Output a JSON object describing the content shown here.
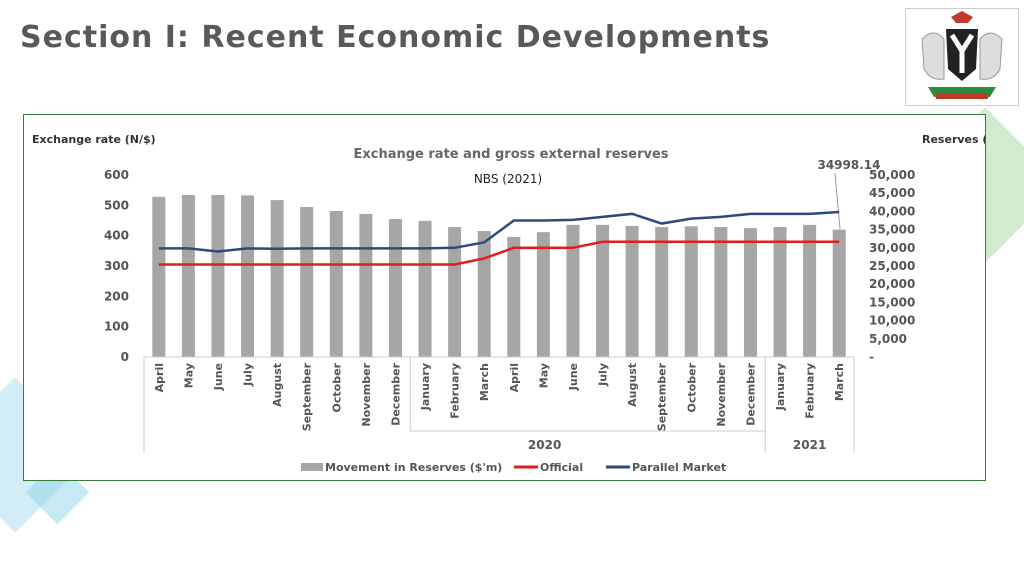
{
  "slide_title": "Section I: Recent Economic Developments",
  "source_note": "NBS (2021)",
  "callout": "34998.14",
  "colors": {
    "bars": "#a6a6a6",
    "official": "#e31c1c",
    "parallel": "#2e4a7a",
    "frame": "#3a7a3a",
    "accent_green": "#7cc576",
    "accent_blue": "#8fd3e8"
  },
  "chart_data": {
    "type": "bar+line",
    "title": "Exchange rate and gross external reserves",
    "ylabel": "Exchange rate (N/$)",
    "y2label": "Reserves ($m)",
    "ylim": [
      0,
      600
    ],
    "yticks": [
      "600",
      "500",
      "400",
      "300",
      "200",
      "100",
      "0"
    ],
    "y2lim": [
      0,
      50000
    ],
    "y2ticks": [
      "50,000",
      "45,000",
      "40,000",
      "35,000",
      "30,000",
      "25,000",
      "20,000",
      "15,000",
      "10,000",
      "5,000",
      "-"
    ],
    "categories": [
      "April",
      "May",
      "June",
      "July",
      "August",
      "September",
      "October",
      "November",
      "December",
      "January",
      "February",
      "March",
      "April",
      "May",
      "June",
      "July",
      "August",
      "September",
      "October",
      "November",
      "December",
      "January",
      "February",
      "March"
    ],
    "groups": [
      {
        "label": "2020",
        "from": 0,
        "to": 20
      },
      {
        "label": "2021",
        "from": 21,
        "to": 23
      }
    ],
    "legend_position": "bottom",
    "series": [
      {
        "name": "Movement in Reserves ($'m)",
        "kind": "bar",
        "axis": "right",
        "values": [
          44000,
          44500,
          44500,
          44400,
          43100,
          41200,
          40100,
          39300,
          37900,
          37400,
          35700,
          34600,
          33000,
          34300,
          36300,
          36300,
          36000,
          35700,
          35900,
          35700,
          35400,
          35700,
          36300,
          34998.14
        ]
      },
      {
        "name": "Official",
        "kind": "line",
        "axis": "left",
        "values": [
          305,
          305,
          305,
          305,
          305,
          305,
          305,
          305,
          305,
          305,
          305,
          325,
          360,
          360,
          360,
          380,
          380,
          380,
          380,
          380,
          380,
          380,
          380,
          380
        ]
      },
      {
        "name": "Parallel Market",
        "kind": "line",
        "axis": "left",
        "values": [
          358,
          358,
          348,
          358,
          357,
          358,
          358,
          358,
          358,
          358,
          360,
          378,
          450,
          450,
          452,
          462,
          472,
          440,
          456,
          462,
          472,
          472,
          472,
          478
        ]
      }
    ]
  }
}
